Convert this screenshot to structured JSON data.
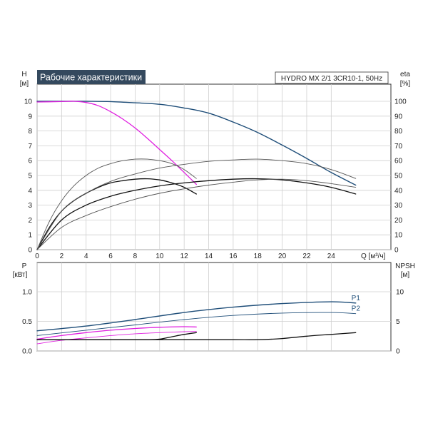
{
  "chart_data": [
    {
      "type": "line",
      "title": "Рабочие характеристики",
      "subtitle": "HYDRO MX 2/1 3CR10-1, 50Hz",
      "xlabel": "Q [м³/ч]",
      "ylabel_top": "H",
      "ylabel_bottom": "[м]",
      "y2label_top": "eta",
      "y2label_bottom": "[%]",
      "x_ticks": [
        0,
        2,
        4,
        6,
        8,
        10,
        12,
        14,
        16,
        18,
        20,
        22,
        24
      ],
      "y_ticks": [
        0,
        1,
        2,
        3,
        4,
        5,
        6,
        7,
        8,
        9,
        10
      ],
      "y2_ticks": [
        0,
        10,
        20,
        30,
        40,
        50,
        60,
        70,
        80,
        90,
        100
      ],
      "xlim": [
        0,
        28
      ],
      "ylim": [
        0,
        11
      ],
      "grid": true,
      "colors": {
        "blue": "#1f4e79",
        "magenta": "#e020e0",
        "black": "#111111",
        "gray": "#555555"
      },
      "series": [
        {
          "axis": "H",
          "color": "blue",
          "width": 1.4,
          "x": [
            0,
            2,
            4,
            6,
            8,
            10,
            12,
            14,
            16,
            18,
            20,
            22,
            24,
            26
          ],
          "y": [
            10,
            10,
            10,
            9.98,
            9.9,
            9.8,
            9.55,
            9.2,
            8.6,
            7.9,
            7.05,
            6.15,
            5.2,
            4.35
          ]
        },
        {
          "axis": "H",
          "color": "magenta",
          "width": 1.3,
          "x": [
            0,
            2,
            3,
            4,
            5,
            6,
            7,
            8,
            9,
            10,
            11,
            12,
            13
          ],
          "y": [
            9.95,
            9.98,
            10,
            9.92,
            9.7,
            9.3,
            8.8,
            8.2,
            7.5,
            6.75,
            6,
            5.2,
            4.4
          ]
        },
        {
          "axis": "eta",
          "color": "black",
          "width": 1.3,
          "x": [
            0,
            1,
            2,
            3,
            4,
            5,
            6,
            7,
            8,
            9,
            10,
            11,
            12,
            13
          ],
          "y": [
            0,
            15,
            26,
            33,
            38,
            42,
            45,
            46.5,
            47.5,
            47.8,
            47,
            45,
            42,
            37.5
          ]
        },
        {
          "axis": "eta",
          "color": "gray",
          "width": 0.9,
          "x": [
            0,
            1,
            2,
            3,
            4,
            5,
            6,
            7,
            8,
            9,
            10,
            11,
            12,
            13
          ],
          "y": [
            0,
            19,
            33,
            43,
            50,
            55,
            58,
            60,
            61,
            61,
            60,
            58,
            54,
            48
          ]
        },
        {
          "axis": "eta",
          "color": "black",
          "width": 1.3,
          "x": [
            0,
            2,
            4,
            6,
            8,
            10,
            12,
            14,
            16,
            18,
            20,
            22,
            24,
            26
          ],
          "y": [
            0,
            20,
            30,
            36,
            40,
            43,
            45,
            46.5,
            47.5,
            47.8,
            47,
            45,
            42,
            37.5
          ]
        },
        {
          "axis": "eta",
          "color": "gray",
          "width": 0.9,
          "x": [
            0,
            2,
            4,
            6,
            8,
            10,
            12,
            14,
            16,
            18,
            20,
            22,
            24,
            26
          ],
          "y": [
            0,
            26,
            38,
            46,
            51,
            55,
            57.5,
            59.5,
            60.5,
            61,
            60,
            58,
            54,
            48
          ]
        },
        {
          "axis": "eta",
          "color": "gray",
          "width": 0.9,
          "x": [
            0,
            2,
            4,
            6,
            8,
            10,
            12,
            14,
            16,
            18,
            20,
            22,
            24,
            26
          ],
          "y": [
            0,
            15,
            23,
            29,
            34,
            38,
            41,
            43.5,
            45.5,
            47,
            47.5,
            46.5,
            44.5,
            42
          ]
        }
      ]
    },
    {
      "type": "line",
      "ylabel_top": "P",
      "ylabel_bottom": "[кВт]",
      "y2label_top": "NPSH",
      "y2label_bottom": "[м]",
      "y_ticks": [
        0.0,
        0.5,
        1.0
      ],
      "y_tick_labels": [
        "0.0",
        "0.5",
        "1.0"
      ],
      "y2_ticks": [
        0,
        5,
        10
      ],
      "xlim": [
        0,
        28
      ],
      "ylim": [
        0,
        1.2
      ],
      "grid": true,
      "series": [
        {
          "name": "P1",
          "color": "blue",
          "width": 1.4,
          "x": [
            0,
            4,
            8,
            12,
            16,
            20,
            24,
            26
          ],
          "y": [
            0.34,
            0.42,
            0.53,
            0.65,
            0.74,
            0.8,
            0.83,
            0.81
          ]
        },
        {
          "name": "P2",
          "color": "blue",
          "width": 0.9,
          "x": [
            0,
            4,
            8,
            12,
            16,
            20,
            24,
            26
          ],
          "y": [
            0.26,
            0.35,
            0.44,
            0.53,
            0.6,
            0.64,
            0.65,
            0.63
          ]
        },
        {
          "color": "magenta",
          "width": 1.3,
          "x": [
            0,
            2,
            4,
            6,
            8,
            10,
            12,
            13
          ],
          "y": [
            0.2,
            0.26,
            0.31,
            0.35,
            0.38,
            0.4,
            0.41,
            0.405
          ]
        },
        {
          "color": "magenta",
          "width": 0.9,
          "x": [
            0,
            2,
            4,
            6,
            8,
            10,
            12,
            13
          ],
          "y": [
            0.12,
            0.18,
            0.22,
            0.26,
            0.29,
            0.31,
            0.325,
            0.33
          ]
        },
        {
          "color": "black",
          "width": 1.3,
          "x": [
            0,
            4,
            8,
            9,
            10,
            11,
            12,
            13
          ],
          "y": [
            0.19,
            0.19,
            0.19,
            0.19,
            0.2,
            0.24,
            0.28,
            0.31
          ]
        },
        {
          "color": "black",
          "width": 1.3,
          "x": [
            0,
            4,
            8,
            12,
            16,
            18,
            20,
            22,
            24,
            26
          ],
          "y": [
            0.19,
            0.19,
            0.19,
            0.19,
            0.19,
            0.19,
            0.21,
            0.25,
            0.28,
            0.31
          ]
        }
      ]
    }
  ]
}
